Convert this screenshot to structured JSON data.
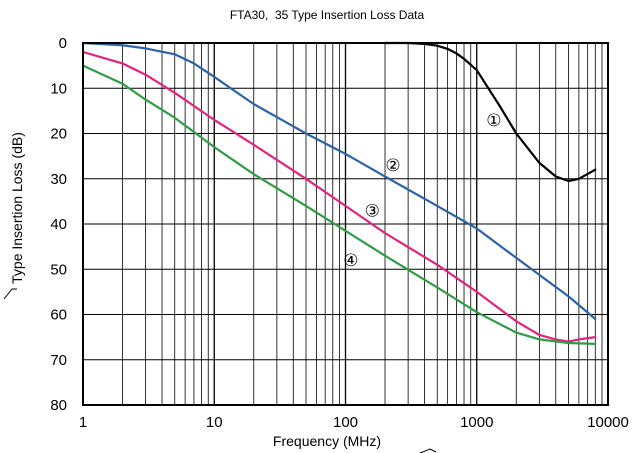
{
  "chart_data": {
    "type": "line",
    "title": "FTA30,  35 Type Insertion Loss Data",
    "xlabel": "Frequency (MHz)",
    "ylabel": "Type Insertion Loss (dB)",
    "xscale": "log",
    "xlim": [
      1,
      10000
    ],
    "ylim": [
      0,
      80
    ],
    "y_inverted": true,
    "grid": true,
    "x_ticks": [
      1,
      10,
      100,
      1000,
      10000
    ],
    "x_tick_labels": [
      "1",
      "10",
      "100",
      "1000",
      "10000"
    ],
    "y_ticks": [
      0,
      10,
      20,
      30,
      40,
      50,
      60,
      70,
      80
    ],
    "y_tick_labels": [
      "0",
      "10",
      "20",
      "30",
      "40",
      "50",
      "60",
      "70",
      "80"
    ],
    "series": [
      {
        "name": "①",
        "color": "#000000",
        "x": [
          200,
          300,
          400,
          500,
          600,
          700,
          800,
          1000,
          1500,
          2000,
          3000,
          4000,
          5000,
          6000,
          8000
        ],
        "y": [
          0,
          0,
          0.2,
          0.6,
          1.3,
          2.3,
          3.5,
          6,
          14,
          20,
          26.5,
          29.5,
          30.5,
          30,
          28
        ]
      },
      {
        "name": "②",
        "color": "#2c63a6",
        "x": [
          1,
          2,
          3,
          5,
          7,
          10,
          20,
          50,
          100,
          200,
          500,
          1000,
          2000,
          5000,
          8000
        ],
        "y": [
          0,
          0.5,
          1.2,
          2.5,
          4.5,
          7.5,
          13.5,
          20,
          24.5,
          29.5,
          36,
          41,
          47.5,
          56,
          61
        ]
      },
      {
        "name": "③",
        "color": "#e2237f",
        "x": [
          1,
          2,
          3,
          5,
          10,
          20,
          50,
          100,
          200,
          500,
          1000,
          2000,
          3000,
          4000,
          5000,
          6000,
          8000
        ],
        "y": [
          2,
          4.5,
          7,
          11,
          17,
          22.5,
          30,
          36,
          42,
          49,
          55,
          61.5,
          64.5,
          65.5,
          66,
          65.5,
          65
        ]
      },
      {
        "name": "④",
        "color": "#2e9d46",
        "x": [
          1,
          2,
          3,
          5,
          10,
          20,
          50,
          100,
          200,
          500,
          1000,
          2000,
          3000,
          5000,
          8000
        ],
        "y": [
          5,
          9,
          12.5,
          16.5,
          23,
          29,
          36,
          41.5,
          47,
          54,
          59.5,
          64,
          65.5,
          66.3,
          66.5
        ]
      }
    ]
  }
}
